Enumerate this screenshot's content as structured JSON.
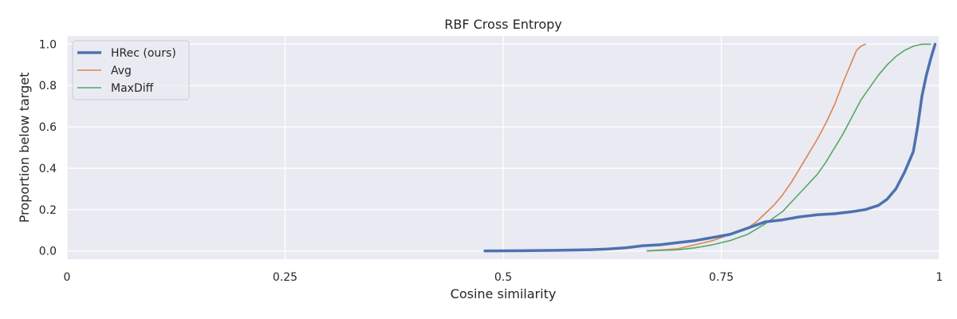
{
  "chart_data": {
    "type": "line",
    "title": "RBF Cross Entropy",
    "xlabel": "Cosine similarity",
    "ylabel": "Proportion below target",
    "xlim": [
      0,
      1
    ],
    "ylim": [
      -0.04,
      1.04
    ],
    "xticks": [
      {
        "value": 0,
        "label": "0"
      },
      {
        "value": 0.25,
        "label": "0.25"
      },
      {
        "value": 0.5,
        "label": "0.5"
      },
      {
        "value": 0.75,
        "label": "0.75"
      },
      {
        "value": 1,
        "label": "1"
      }
    ],
    "yticks": [
      {
        "value": 0.0,
        "label": "0.0"
      },
      {
        "value": 0.2,
        "label": "0.2"
      },
      {
        "value": 0.4,
        "label": "0.4"
      },
      {
        "value": 0.6,
        "label": "0.6"
      },
      {
        "value": 0.8,
        "label": "0.8"
      },
      {
        "value": 1.0,
        "label": "1.0"
      }
    ],
    "grid": true,
    "legend_position": "top-left",
    "series": [
      {
        "name": "HRec (ours)",
        "color": "#4c72b0",
        "width": 3.5,
        "x": [
          0.479,
          0.52,
          0.56,
          0.6,
          0.62,
          0.64,
          0.66,
          0.68,
          0.7,
          0.72,
          0.74,
          0.76,
          0.78,
          0.8,
          0.82,
          0.84,
          0.86,
          0.88,
          0.9,
          0.915,
          0.93,
          0.94,
          0.95,
          0.96,
          0.97,
          0.975,
          0.98,
          0.985,
          0.99,
          0.995
        ],
        "y": [
          0.0,
          0.001,
          0.003,
          0.006,
          0.009,
          0.015,
          0.025,
          0.03,
          0.04,
          0.05,
          0.065,
          0.08,
          0.11,
          0.14,
          0.15,
          0.165,
          0.175,
          0.18,
          0.19,
          0.2,
          0.22,
          0.25,
          0.3,
          0.38,
          0.48,
          0.6,
          0.75,
          0.85,
          0.93,
          1.0
        ]
      },
      {
        "name": "Avg",
        "color": "#dd8452",
        "width": 1.6,
        "x": [
          0.665,
          0.7,
          0.72,
          0.74,
          0.76,
          0.78,
          0.79,
          0.8,
          0.81,
          0.82,
          0.83,
          0.84,
          0.85,
          0.86,
          0.87,
          0.88,
          0.89,
          0.9,
          0.905,
          0.91,
          0.915
        ],
        "y": [
          0.0,
          0.01,
          0.03,
          0.05,
          0.08,
          0.11,
          0.14,
          0.18,
          0.22,
          0.27,
          0.33,
          0.4,
          0.47,
          0.54,
          0.62,
          0.71,
          0.82,
          0.92,
          0.97,
          0.99,
          1.0
        ]
      },
      {
        "name": "MaxDiff",
        "color": "#55a868",
        "width": 1.6,
        "x": [
          0.665,
          0.7,
          0.72,
          0.74,
          0.76,
          0.78,
          0.8,
          0.82,
          0.84,
          0.86,
          0.87,
          0.88,
          0.89,
          0.9,
          0.91,
          0.92,
          0.93,
          0.94,
          0.95,
          0.96,
          0.97,
          0.98,
          0.99
        ],
        "y": [
          0.0,
          0.005,
          0.015,
          0.03,
          0.05,
          0.08,
          0.13,
          0.19,
          0.28,
          0.37,
          0.43,
          0.5,
          0.57,
          0.65,
          0.73,
          0.79,
          0.85,
          0.9,
          0.94,
          0.97,
          0.99,
          1.0,
          1.0
        ]
      }
    ]
  }
}
